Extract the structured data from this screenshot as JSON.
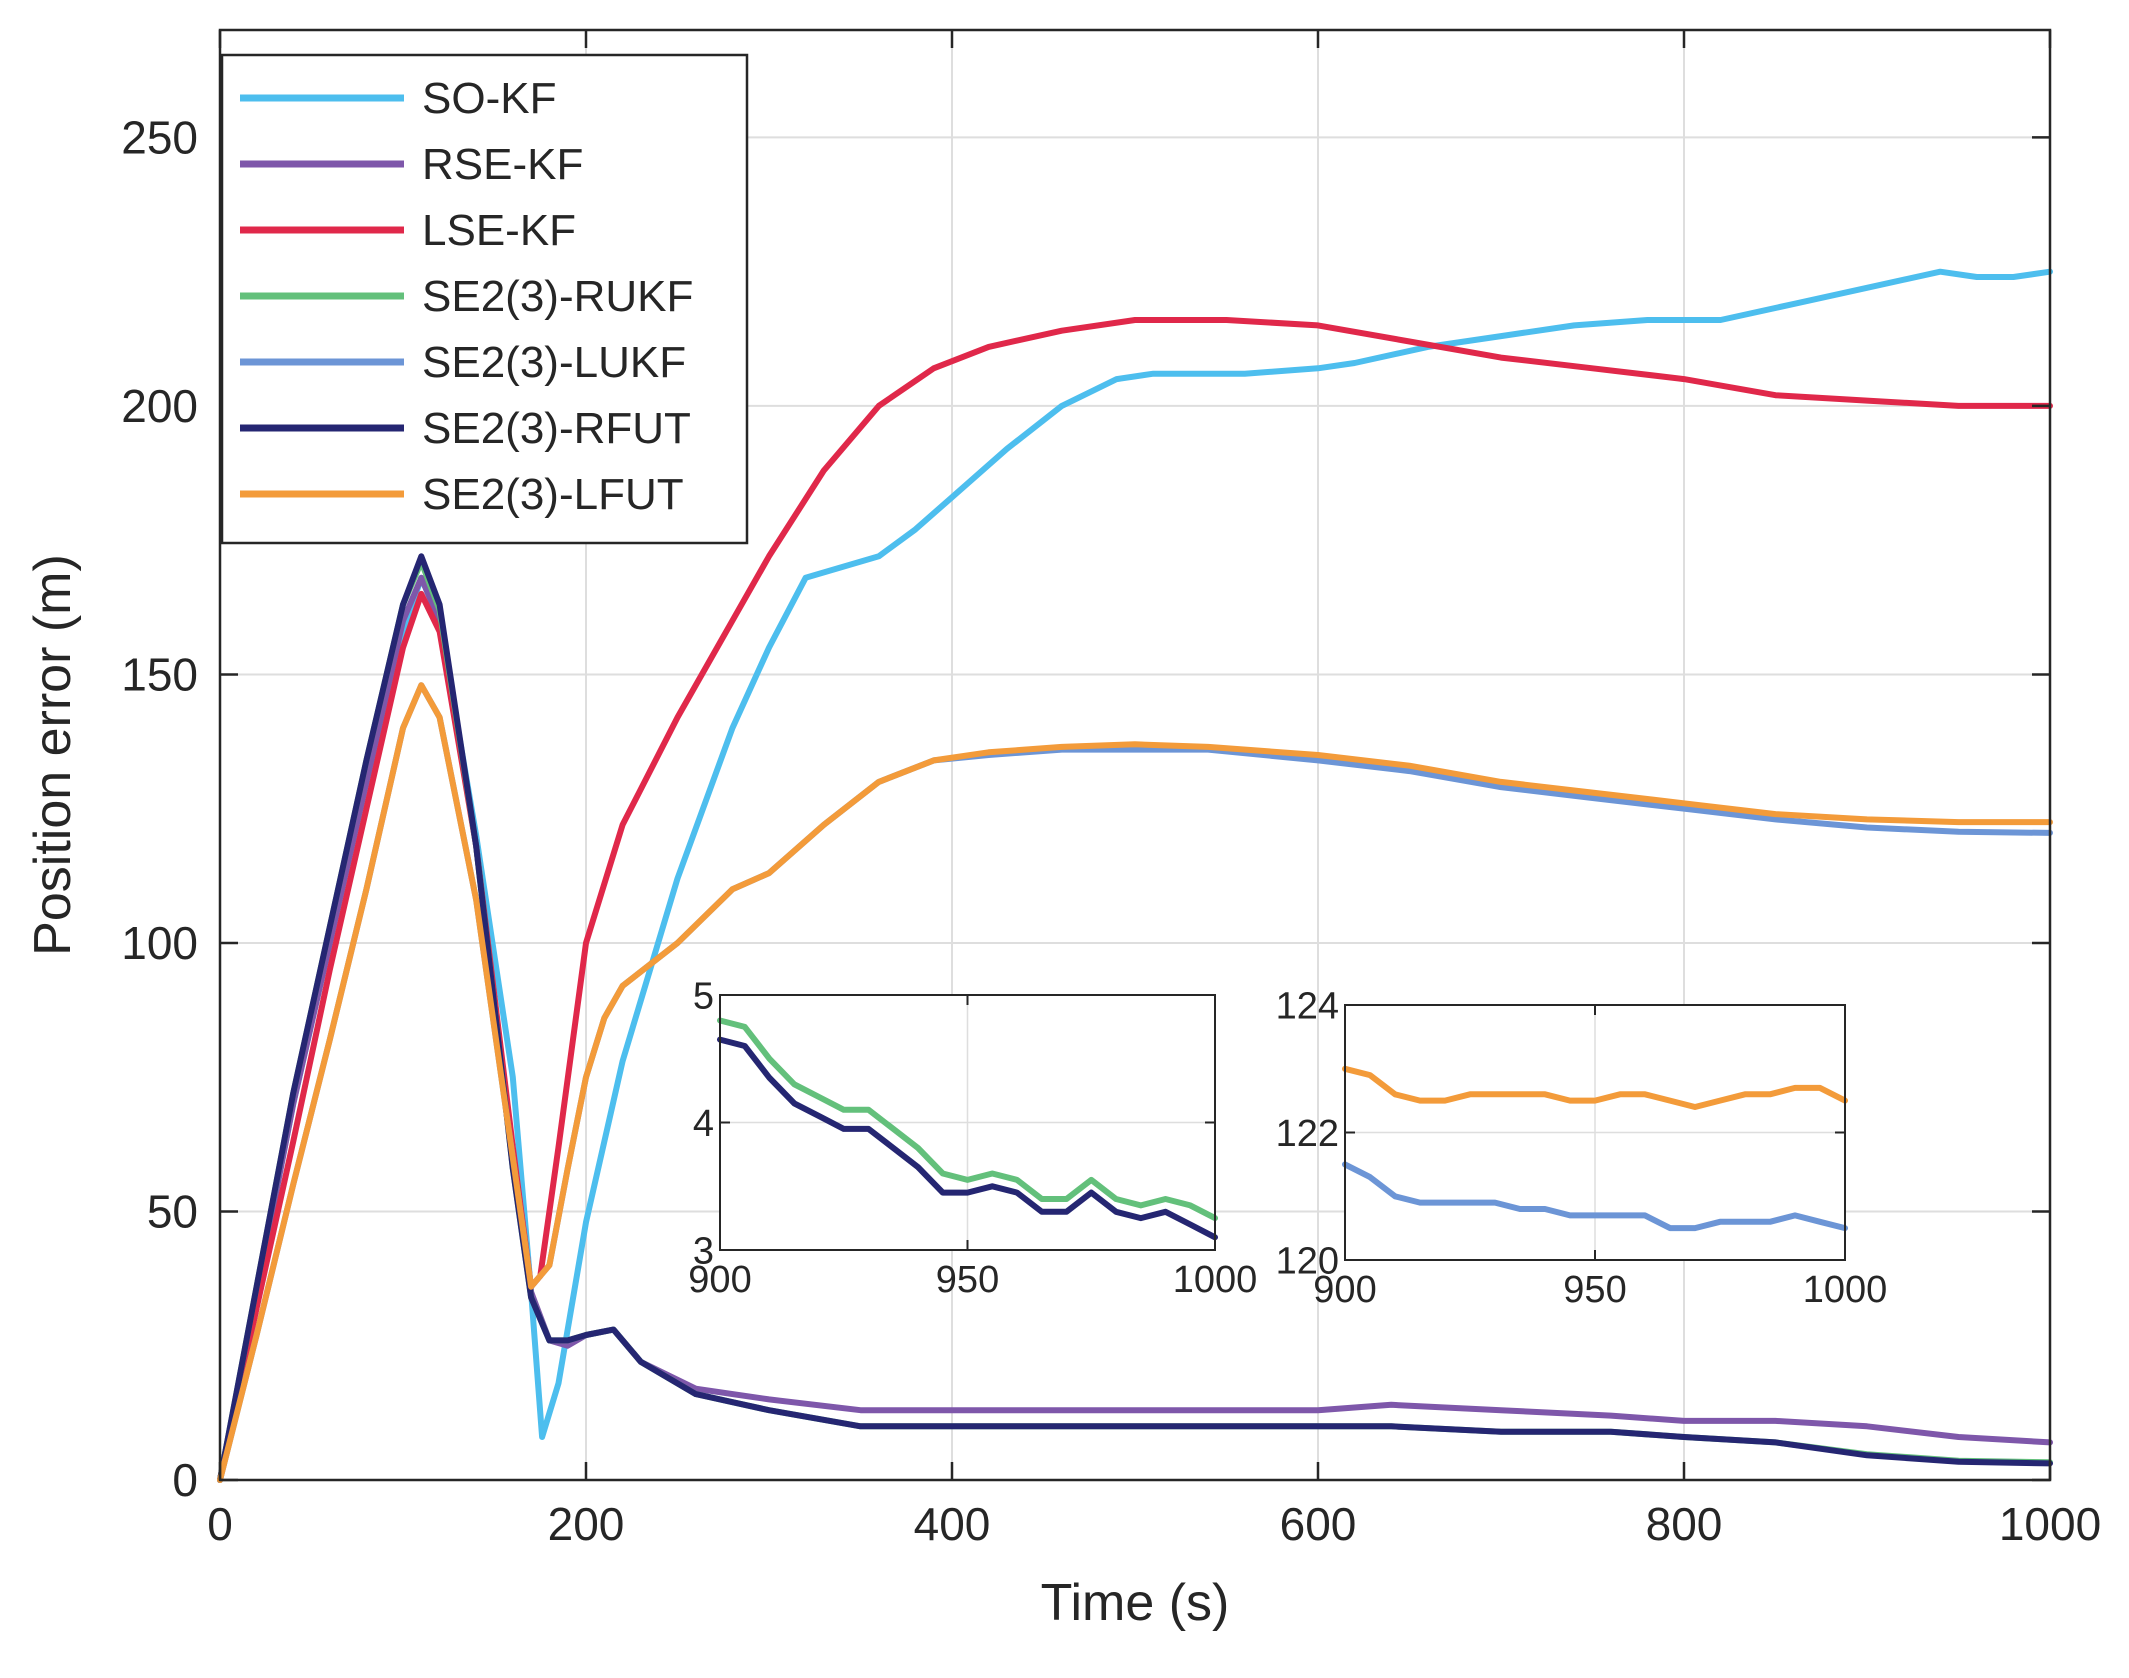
{
  "chart_data": [
    {
      "type": "line",
      "xlabel": "Time (s)",
      "ylabel": "Position error (m)",
      "xlim": [
        0,
        1000
      ],
      "ylim": [
        0,
        270
      ],
      "xticks": [
        0,
        200,
        400,
        600,
        800,
        1000
      ],
      "yticks": [
        0,
        50,
        100,
        150,
        200,
        250
      ],
      "grid": true,
      "legend_position": "top-left",
      "series": [
        {
          "name": "SO-KF",
          "color": "#4DBEEE",
          "x": [
            0,
            20,
            40,
            60,
            80,
            100,
            110,
            120,
            140,
            160,
            170,
            176,
            185,
            200,
            220,
            250,
            280,
            300,
            320,
            340,
            360,
            380,
            400,
            430,
            460,
            490,
            510,
            540,
            560,
            600,
            620,
            660,
            700,
            740,
            780,
            820,
            860,
            900,
            940,
            960,
            980,
            1000
          ],
          "y": [
            0,
            35,
            70,
            100,
            130,
            158,
            168,
            160,
            120,
            75,
            35,
            8,
            18,
            48,
            78,
            112,
            140,
            155,
            168,
            170,
            172,
            177,
            183,
            192,
            200,
            205,
            206,
            206,
            206,
            207,
            208,
            211,
            213,
            215,
            216,
            216,
            219,
            222,
            225,
            224,
            224,
            225
          ]
        },
        {
          "name": "RSE-KF",
          "color": "#7E57AA",
          "x": [
            0,
            20,
            40,
            60,
            80,
            100,
            110,
            120,
            140,
            160,
            170,
            180,
            190,
            200,
            215,
            230,
            260,
            300,
            350,
            400,
            450,
            500,
            550,
            600,
            640,
            700,
            760,
            800,
            850,
            900,
            950,
            1000
          ],
          "y": [
            0,
            35,
            70,
            100,
            130,
            160,
            168,
            160,
            118,
            60,
            35,
            26,
            25,
            27,
            28,
            22,
            17,
            15,
            13,
            13,
            13,
            13,
            13,
            13,
            14,
            13,
            12,
            11,
            11,
            10,
            8,
            7
          ]
        },
        {
          "name": "LSE-KF",
          "color": "#E0284A",
          "x": [
            0,
            20,
            40,
            60,
            80,
            100,
            110,
            120,
            140,
            160,
            170,
            175,
            185,
            200,
            220,
            250,
            280,
            300,
            330,
            360,
            390,
            420,
            460,
            500,
            520,
            550,
            600,
            650,
            700,
            750,
            800,
            850,
            900,
            950,
            1000
          ],
          "y": [
            0,
            32,
            63,
            95,
            125,
            155,
            165,
            158,
            118,
            62,
            36,
            38,
            62,
            100,
            122,
            142,
            160,
            172,
            188,
            200,
            207,
            211,
            214,
            216,
            216,
            216,
            215,
            212,
            209,
            207,
            205,
            202,
            201,
            200,
            200
          ]
        },
        {
          "name": "SE2(3)-RUKF",
          "color": "#63C07B",
          "x": [
            0,
            20,
            40,
            60,
            80,
            100,
            110,
            120,
            140,
            160,
            170,
            180,
            190,
            200,
            215,
            230,
            260,
            300,
            350,
            400,
            450,
            500,
            550,
            600,
            640,
            700,
            760,
            800,
            850,
            900,
            950,
            1000
          ],
          "y": [
            0,
            36,
            72,
            103,
            134,
            163,
            171,
            162,
            118,
            58,
            34,
            26,
            26,
            27,
            28,
            22,
            16,
            13,
            10,
            10,
            10,
            10,
            10,
            10,
            10,
            9,
            9,
            8,
            7,
            4.8,
            3.6,
            3.3
          ]
        },
        {
          "name": "SE2(3)-LUKF",
          "color": "#6C95D6",
          "x": [
            0,
            20,
            40,
            60,
            80,
            100,
            110,
            120,
            140,
            160,
            170,
            180,
            190,
            200,
            210,
            220,
            250,
            280,
            300,
            330,
            360,
            390,
            420,
            460,
            500,
            540,
            600,
            650,
            700,
            750,
            800,
            850,
            900,
            950,
            1000
          ],
          "y": [
            0,
            27,
            55,
            82,
            110,
            140,
            148,
            142,
            108,
            60,
            36,
            40,
            58,
            75,
            86,
            92,
            100,
            110,
            113,
            122,
            130,
            134,
            135,
            136,
            136,
            136,
            134,
            132,
            129,
            127,
            125,
            123,
            121.5,
            120.7,
            120.5
          ]
        },
        {
          "name": "SE2(3)-RFUT",
          "color": "#252672",
          "x": [
            0,
            20,
            40,
            60,
            80,
            100,
            110,
            120,
            140,
            160,
            170,
            180,
            190,
            200,
            215,
            230,
            260,
            300,
            350,
            400,
            450,
            500,
            550,
            600,
            640,
            700,
            760,
            800,
            850,
            900,
            950,
            1000
          ],
          "y": [
            0,
            36,
            72,
            103,
            134,
            163,
            172,
            163,
            118,
            58,
            34,
            26,
            26,
            27,
            28,
            22,
            16,
            13,
            10,
            10,
            10,
            10,
            10,
            10,
            10,
            9,
            9,
            8,
            7,
            4.6,
            3.4,
            3.1
          ]
        },
        {
          "name": "SE2(3)-LFUT",
          "color": "#F39B3A",
          "x": [
            0,
            20,
            40,
            60,
            80,
            100,
            110,
            120,
            140,
            160,
            170,
            180,
            190,
            200,
            210,
            220,
            250,
            280,
            300,
            330,
            360,
            390,
            420,
            460,
            500,
            540,
            600,
            650,
            700,
            750,
            800,
            850,
            900,
            950,
            1000
          ],
          "y": [
            0,
            27,
            55,
            82,
            110,
            140,
            148,
            142,
            108,
            60,
            36,
            40,
            58,
            75,
            86,
            92,
            100,
            110,
            113,
            122,
            130,
            134,
            135.5,
            136.5,
            137,
            136.5,
            135,
            133,
            130,
            128,
            126,
            124,
            123,
            122.5,
            122.5
          ]
        }
      ]
    },
    {
      "type": "line",
      "xlim": [
        900,
        1000
      ],
      "ylim": [
        3,
        5
      ],
      "xticks": [
        900,
        950,
        1000
      ],
      "yticks": [
        3,
        4,
        5
      ],
      "grid": true,
      "series": [
        {
          "name": "SE2(3)-RUKF",
          "color": "#63C07B",
          "x": [
            900,
            905,
            910,
            915,
            920,
            925,
            930,
            935,
            940,
            945,
            950,
            955,
            960,
            965,
            970,
            975,
            980,
            985,
            990,
            995,
            1000
          ],
          "y": [
            4.8,
            4.75,
            4.5,
            4.3,
            4.2,
            4.1,
            4.1,
            3.95,
            3.8,
            3.6,
            3.55,
            3.6,
            3.55,
            3.4,
            3.4,
            3.55,
            3.4,
            3.35,
            3.4,
            3.35,
            3.25
          ]
        },
        {
          "name": "SE2(3)-RFUT",
          "color": "#252672",
          "x": [
            900,
            905,
            910,
            915,
            920,
            925,
            930,
            935,
            940,
            945,
            950,
            955,
            960,
            965,
            970,
            975,
            980,
            985,
            990,
            995,
            1000
          ],
          "y": [
            4.65,
            4.6,
            4.35,
            4.15,
            4.05,
            3.95,
            3.95,
            3.8,
            3.65,
            3.45,
            3.45,
            3.5,
            3.45,
            3.3,
            3.3,
            3.45,
            3.3,
            3.25,
            3.3,
            3.2,
            3.1
          ]
        }
      ]
    },
    {
      "type": "line",
      "xlim": [
        900,
        1000
      ],
      "ylim": [
        120,
        124
      ],
      "xticks": [
        900,
        950,
        1000
      ],
      "yticks": [
        120,
        122,
        124
      ],
      "grid": true,
      "series": [
        {
          "name": "SE2(3)-LFUT",
          "color": "#F39B3A",
          "x": [
            900,
            905,
            910,
            915,
            920,
            925,
            930,
            935,
            940,
            945,
            950,
            955,
            960,
            965,
            970,
            975,
            980,
            985,
            990,
            995,
            1000
          ],
          "y": [
            123.0,
            122.9,
            122.6,
            122.5,
            122.5,
            122.6,
            122.6,
            122.6,
            122.6,
            122.5,
            122.5,
            122.6,
            122.6,
            122.5,
            122.4,
            122.5,
            122.6,
            122.6,
            122.7,
            122.7,
            122.5
          ]
        },
        {
          "name": "SE2(3)-LUKF",
          "color": "#6C95D6",
          "x": [
            900,
            905,
            910,
            915,
            920,
            925,
            930,
            935,
            940,
            945,
            950,
            955,
            960,
            965,
            970,
            975,
            980,
            985,
            990,
            995,
            1000
          ],
          "y": [
            121.5,
            121.3,
            121.0,
            120.9,
            120.9,
            120.9,
            120.9,
            120.8,
            120.8,
            120.7,
            120.7,
            120.7,
            120.7,
            120.5,
            120.5,
            120.6,
            120.6,
            120.6,
            120.7,
            120.6,
            120.5
          ]
        }
      ]
    }
  ]
}
